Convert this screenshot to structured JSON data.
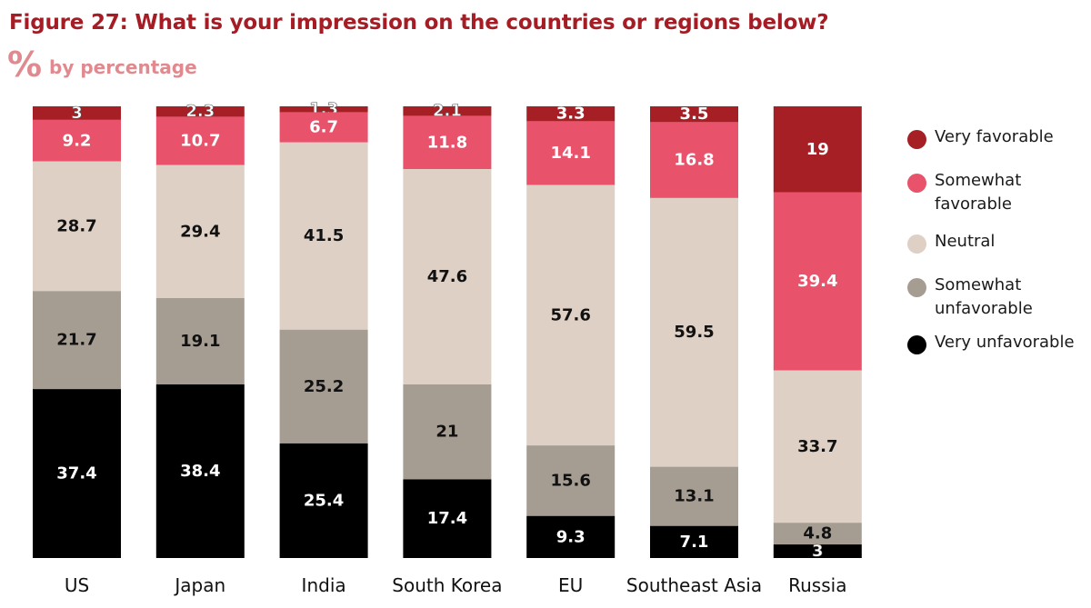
{
  "title": "Figure 27: What is your impression on the countries or regions below?",
  "subtitle": "by percentage",
  "icon": "percent-icon",
  "chart_data": {
    "type": "bar",
    "stacked": true,
    "orientation": "vertical",
    "title": "Figure 27: What is your impression on the countries or regions below?",
    "subtitle": "by percentage",
    "categories": [
      "US",
      "Japan",
      "India",
      "South Korea",
      "EU",
      "Southeast Asia",
      "Russia"
    ],
    "series": [
      {
        "name": "Very favorable",
        "color": "#a51f24",
        "label_color": "#ffffff",
        "values": [
          3,
          2.3,
          1.3,
          2.1,
          3.3,
          3.5,
          19
        ]
      },
      {
        "name": "Somewhat favorable",
        "color": "#e8526a",
        "label_color": "#ffffff",
        "values": [
          9.2,
          10.7,
          6.7,
          11.8,
          14.1,
          16.8,
          39.4
        ]
      },
      {
        "name": "Neutral",
        "color": "#ded0c4",
        "label_color": "#111111",
        "values": [
          28.7,
          29.4,
          41.5,
          47.6,
          57.6,
          59.5,
          33.7
        ]
      },
      {
        "name": "Somewhat unfavorable",
        "color": "#a69d92",
        "label_color": "#111111",
        "values": [
          21.7,
          19.1,
          25.2,
          21,
          15.6,
          13.1,
          4.8
        ]
      },
      {
        "name": "Very unfavorable",
        "color": "#000000",
        "label_color": "#ffffff",
        "values": [
          37.4,
          38.4,
          25.4,
          17.4,
          9.3,
          7.1,
          3
        ]
      }
    ],
    "ylim": [
      0,
      100
    ],
    "xlabel": "",
    "ylabel": "",
    "legend_position": "right"
  },
  "legend": [
    {
      "label_lines": [
        "Very favorable"
      ],
      "color": "#a51f24"
    },
    {
      "label_lines": [
        "Somewhat",
        "favorable"
      ],
      "color": "#e8526a"
    },
    {
      "label_lines": [
        "Neutral"
      ],
      "color": "#ded0c4"
    },
    {
      "label_lines": [
        "Somewhat",
        "unfavorable"
      ],
      "color": "#a69d92"
    },
    {
      "label_lines": [
        "Very unfavorable"
      ],
      "color": "#000000"
    }
  ]
}
